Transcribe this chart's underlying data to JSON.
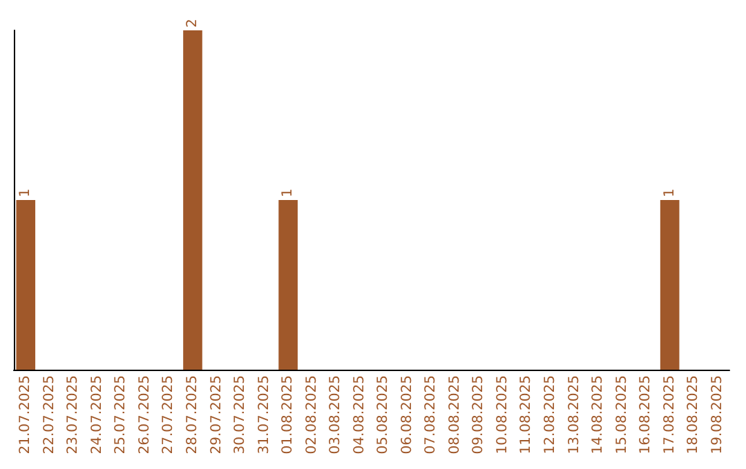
{
  "chart_data": {
    "type": "bar",
    "categories": [
      "21.07.2025",
      "22.07.2025",
      "23.07.2025",
      "24.07.2025",
      "25.07.2025",
      "26.07.2025",
      "27.07.2025",
      "28.07.2025",
      "29.07.2025",
      "30.07.2025",
      "31.07.2025",
      "01.08.2025",
      "02.08.2025",
      "03.08.2025",
      "04.08.2025",
      "05.08.2025",
      "06.08.2025",
      "07.08.2025",
      "08.08.2025",
      "09.08.2025",
      "10.08.2025",
      "11.08.2025",
      "12.08.2025",
      "13.08.2025",
      "14.08.2025",
      "15.08.2025",
      "16.08.2025",
      "17.08.2025",
      "18.08.2025",
      "19.08.2025"
    ],
    "values": [
      1,
      0,
      0,
      0,
      0,
      0,
      0,
      2,
      0,
      0,
      0,
      1,
      0,
      0,
      0,
      0,
      0,
      0,
      0,
      0,
      0,
      0,
      0,
      0,
      0,
      0,
      0,
      1,
      0,
      0
    ],
    "value_labels": [
      "1",
      null,
      null,
      null,
      null,
      null,
      null,
      "2",
      null,
      null,
      null,
      "1",
      null,
      null,
      null,
      null,
      null,
      null,
      null,
      null,
      null,
      null,
      null,
      null,
      null,
      null,
      null,
      "1",
      null,
      null
    ],
    "color": "#a0582a"
  }
}
